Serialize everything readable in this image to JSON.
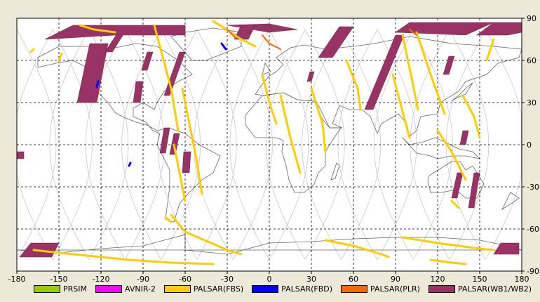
{
  "chart_data": {
    "type": "map",
    "xlim": [
      -180,
      180
    ],
    "ylim": [
      -90,
      90
    ],
    "x_ticks": [
      -180,
      -150,
      -120,
      -90,
      -60,
      -30,
      0,
      30,
      60,
      90,
      120,
      150,
      180
    ],
    "y_ticks": [
      -90,
      -60,
      -30,
      0,
      30,
      60,
      90
    ],
    "grid": true,
    "legend_placement": "bottom",
    "legend": [
      {
        "label": "PRSIM",
        "color": "#99cc00"
      },
      {
        "label": "AVNIR-2",
        "color": "#ff00ff"
      },
      {
        "label": "PALSAR(FBS)",
        "color": "#ffcc00"
      },
      {
        "label": "PALSAR(FBD)",
        "color": "#0000ff"
      },
      {
        "label": "PALSAR(PLR)",
        "color": "#ff6600"
      },
      {
        "label": "PALSAR(WB1/WB2)",
        "color": "#993366"
      }
    ],
    "wb_swaths": [
      {
        "lon": [
          -137,
          -123,
          -115,
          -128
        ],
        "lat": [
          30,
          30,
          72,
          72
        ]
      },
      {
        "lon": [
          -117,
          -112,
          -103,
          -108
        ],
        "lat": [
          66,
          66,
          80,
          80
        ]
      },
      {
        "lon": [
          -91,
          -87,
          -83,
          -87
        ],
        "lat": [
          53,
          53,
          66,
          66
        ]
      },
      {
        "lon": [
          -97,
          -92,
          -90,
          -95
        ],
        "lat": [
          30,
          30,
          45,
          45
        ]
      },
      {
        "lon": [
          -75,
          -71,
          -60,
          -64
        ],
        "lat": [
          35,
          35,
          66,
          66
        ]
      },
      {
        "lon": [
          -78,
          -74,
          -71,
          -75
        ],
        "lat": [
          -6,
          -6,
          12,
          12
        ]
      },
      {
        "lon": [
          -71,
          -67,
          -64,
          -68
        ],
        "lat": [
          -7,
          -7,
          8,
          8
        ]
      },
      {
        "lon": [
          -62,
          -57,
          -56,
          -61
        ],
        "lat": [
          -20,
          -20,
          -5,
          -5
        ]
      },
      {
        "lon": [
          -160,
          -140,
          -60,
          -60,
          -110
        ],
        "lat": [
          75,
          85,
          85,
          78,
          78
        ]
      },
      {
        "lon": [
          -30,
          0,
          20,
          0
        ],
        "lat": [
          85,
          86,
          82,
          80
        ]
      },
      {
        "lon": [
          -25,
          -15,
          -10,
          -20
        ],
        "lat": [
          75,
          75,
          85,
          85
        ]
      },
      {
        "lon": [
          27,
          30,
          32,
          29
        ],
        "lat": [
          45,
          45,
          52,
          52
        ]
      },
      {
        "lon": [
          35,
          45,
          60,
          50
        ],
        "lat": [
          62,
          62,
          84,
          84
        ]
      },
      {
        "lon": [
          68,
          74,
          96,
          90
        ],
        "lat": [
          25,
          25,
          78,
          78
        ]
      },
      {
        "lon": [
          90,
          140,
          160,
          100
        ],
        "lat": [
          80,
          78,
          87,
          87
        ]
      },
      {
        "lon": [
          124,
          128,
          132,
          128
        ],
        "lat": [
          50,
          50,
          63,
          63
        ]
      },
      {
        "lon": [
          136,
          140,
          142,
          138
        ],
        "lat": [
          0,
          0,
          10,
          10
        ]
      },
      {
        "lon": [
          130,
          134,
          138,
          134
        ],
        "lat": [
          -38,
          -38,
          -20,
          -20
        ]
      },
      {
        "lon": [
          142,
          146,
          150,
          146
        ],
        "lat": [
          -45,
          -45,
          -20,
          -20
        ]
      },
      {
        "lon": [
          148,
          170,
          180,
          180,
          160
        ],
        "lat": [
          78,
          78,
          80,
          87,
          87
        ]
      },
      {
        "lon": [
          -178,
          -155,
          -150,
          -170
        ],
        "lat": [
          -80,
          -80,
          -70,
          -70
        ]
      },
      {
        "lon": [
          160,
          178,
          178,
          165
        ],
        "lat": [
          -78,
          -78,
          -70,
          -70
        ]
      },
      {
        "lon": [
          -180,
          -175,
          -175,
          -180
        ],
        "lat": [
          -10,
          -10,
          -5,
          -5
        ]
      }
    ],
    "fbs_tracks": [
      {
        "lon": [
          -82,
          -70,
          -65
        ],
        "lat": [
          85,
          40,
          10
        ]
      },
      {
        "lon": [
          -62,
          -52,
          -48
        ],
        "lat": [
          40,
          -10,
          -35
        ]
      },
      {
        "lon": [
          -68,
          -63,
          -60
        ],
        "lat": [
          0,
          -25,
          -40
        ]
      },
      {
        "lon": [
          -40,
          -20,
          -10
        ],
        "lat": [
          88,
          75,
          70
        ]
      },
      {
        "lon": [
          -5,
          0,
          5
        ],
        "lat": [
          50,
          30,
          15
        ]
      },
      {
        "lon": [
          8,
          15,
          22
        ],
        "lat": [
          35,
          5,
          -20
        ]
      },
      {
        "lon": [
          30,
          38,
          40
        ],
        "lat": [
          40,
          15,
          -5
        ]
      },
      {
        "lon": [
          55,
          63,
          65
        ],
        "lat": [
          60,
          40,
          25
        ]
      },
      {
        "lon": [
          88,
          96,
          100
        ],
        "lat": [
          50,
          20,
          5
        ]
      },
      {
        "lon": [
          95,
          102,
          106
        ],
        "lat": [
          78,
          45,
          25
        ]
      },
      {
        "lon": [
          105,
          115,
          125
        ],
        "lat": [
          80,
          50,
          22
        ]
      },
      {
        "lon": [
          120,
          130,
          140
        ],
        "lat": [
          10,
          -5,
          -25
        ]
      },
      {
        "lon": [
          138,
          146,
          150
        ],
        "lat": [
          35,
          20,
          5
        ]
      },
      {
        "lon": [
          155,
          160
        ],
        "lat": [
          60,
          75
        ]
      },
      {
        "lon": [
          -168,
          -140,
          -100,
          -70,
          -40
        ],
        "lat": [
          -75,
          -78,
          -82,
          -84,
          -85
        ]
      },
      {
        "lon": [
          -70,
          -60,
          -30,
          -20
        ],
        "lat": [
          -50,
          -62,
          -75,
          -78
        ]
      },
      {
        "lon": [
          40,
          60,
          80,
          85
        ],
        "lat": [
          -68,
          -72,
          -78,
          -80
        ]
      },
      {
        "lon": [
          95,
          120,
          150,
          160
        ],
        "lat": [
          -66,
          -70,
          -74,
          -75
        ]
      },
      {
        "lon": [
          115,
          130,
          140
        ],
        "lat": [
          -82,
          -84,
          -85
        ]
      },
      {
        "lon": [
          -135,
          -125,
          -110
        ],
        "lat": [
          85,
          82,
          80
        ]
      },
      {
        "lon": [
          -150,
          -148
        ],
        "lat": [
          60,
          65
        ]
      },
      {
        "lon": [
          -170,
          -168
        ],
        "lat": [
          66,
          68
        ]
      },
      {
        "lon": [
          130,
          135
        ],
        "lat": [
          -40,
          -45
        ]
      },
      {
        "lon": [
          -74,
          -70
        ],
        "lat": [
          -52,
          -55
        ]
      }
    ],
    "fbd_tracks": [
      {
        "lon": [
          -34,
          -31
        ],
        "lat": [
          72,
          68
        ]
      },
      {
        "lon": [
          -100,
          -99
        ],
        "lat": [
          -15,
          -13
        ]
      },
      {
        "lon": [
          -123,
          -122
        ],
        "lat": [
          41,
          45
        ]
      }
    ],
    "plr_tracks": [
      {
        "lon": [
          -5,
          0,
          8
        ],
        "lat": [
          78,
          72,
          68
        ]
      },
      {
        "lon": [
          -30,
          -24
        ],
        "lat": [
          82,
          76
        ]
      },
      {
        "lon": [
          100,
          105
        ],
        "lat": [
          82,
          78
        ]
      }
    ]
  }
}
